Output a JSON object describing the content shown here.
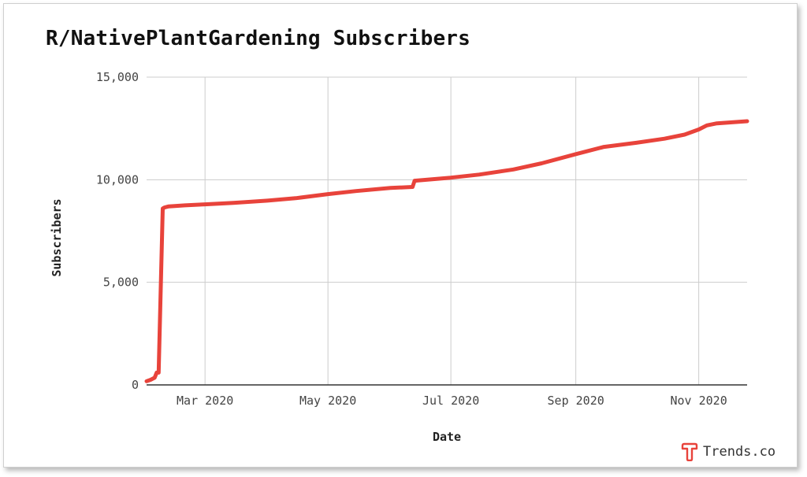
{
  "chart_data": {
    "type": "line",
    "title": "R/NativePlantGardening Subscribers",
    "xlabel": "Date",
    "ylabel": "Subscribers",
    "ylim": [
      0,
      15000
    ],
    "yticks": [
      0,
      5000,
      10000,
      15000
    ],
    "ytick_labels": [
      "0",
      "5,000",
      "10,000",
      "15,000"
    ],
    "xlim": [
      "2020-02-01",
      "2020-11-25"
    ],
    "xticks": [
      "2020-03-01",
      "2020-05-01",
      "2020-07-01",
      "2020-09-01",
      "2020-11-01"
    ],
    "xtick_labels": [
      "Mar 2020",
      "May 2020",
      "Jul 2020",
      "Sep 2020",
      "Nov 2020"
    ],
    "grid": true,
    "line_color": "#e8433b",
    "series": [
      {
        "x": [
          "2020-02-01",
          "2020-02-03",
          "2020-02-05",
          "2020-02-06",
          "2020-02-07",
          "2020-02-09",
          "2020-02-10",
          "2020-02-12",
          "2020-02-15",
          "2020-02-20",
          "2020-03-01",
          "2020-03-15",
          "2020-04-01",
          "2020-04-15",
          "2020-05-01",
          "2020-05-15",
          "2020-06-01",
          "2020-06-12",
          "2020-06-13",
          "2020-07-01",
          "2020-07-15",
          "2020-08-01",
          "2020-08-15",
          "2020-09-01",
          "2020-09-15",
          "2020-10-01",
          "2020-10-15",
          "2020-10-25",
          "2020-11-01",
          "2020-11-05",
          "2020-11-10",
          "2020-11-25"
        ],
        "y": [
          180,
          250,
          350,
          600,
          600,
          8600,
          8650,
          8700,
          8720,
          8750,
          8800,
          8870,
          8980,
          9100,
          9300,
          9450,
          9600,
          9650,
          9950,
          10100,
          10250,
          10500,
          10800,
          11250,
          11600,
          11800,
          12000,
          12200,
          12450,
          12650,
          12750,
          12850
        ]
      }
    ]
  },
  "brand": {
    "name": "Trends.co",
    "color": "#e8433b"
  }
}
